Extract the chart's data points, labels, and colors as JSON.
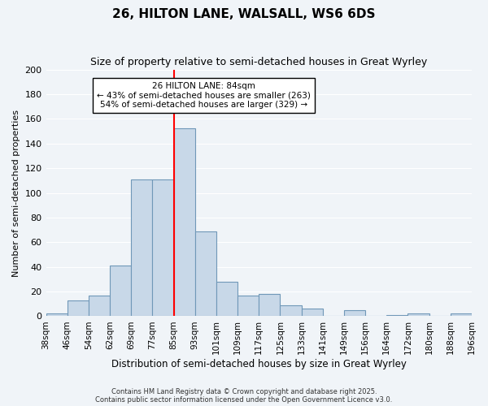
{
  "title": "26, HILTON LANE, WALSALL, WS6 6DS",
  "subtitle": "Size of property relative to semi-detached houses in Great Wyrley",
  "xlabel": "Distribution of semi-detached houses by size in Great Wyrley",
  "ylabel": "Number of semi-detached properties",
  "bin_labels": [
    "38sqm",
    "46sqm",
    "54sqm",
    "62sqm",
    "69sqm",
    "77sqm",
    "85sqm",
    "93sqm",
    "101sqm",
    "109sqm",
    "117sqm",
    "125sqm",
    "133sqm",
    "141sqm",
    "149sqm",
    "156sqm",
    "164sqm",
    "172sqm",
    "180sqm",
    "188sqm",
    "196sqm"
  ],
  "bar_heights": [
    2,
    13,
    17,
    41,
    111,
    111,
    152,
    69,
    28,
    17,
    18,
    9,
    6,
    0,
    5,
    0,
    1,
    2,
    0,
    2
  ],
  "bar_color": "#c8d8e8",
  "bar_edge_color": "#7098b8",
  "vline_x": 6,
  "vline_color": "red",
  "annotation_title": "26 HILTON LANE: 84sqm",
  "annotation_line1": "← 43% of semi-detached houses are smaller (263)",
  "annotation_line2": "54% of semi-detached houses are larger (329) →",
  "annotation_box_color": "white",
  "annotation_box_edge": "black",
  "ylim": [
    0,
    200
  ],
  "yticks": [
    0,
    20,
    40,
    60,
    80,
    100,
    120,
    140,
    160,
    180,
    200
  ],
  "background_color": "#f0f4f8",
  "footer_line1": "Contains HM Land Registry data © Crown copyright and database right 2025.",
  "footer_line2": "Contains public sector information licensed under the Open Government Licence v3.0."
}
